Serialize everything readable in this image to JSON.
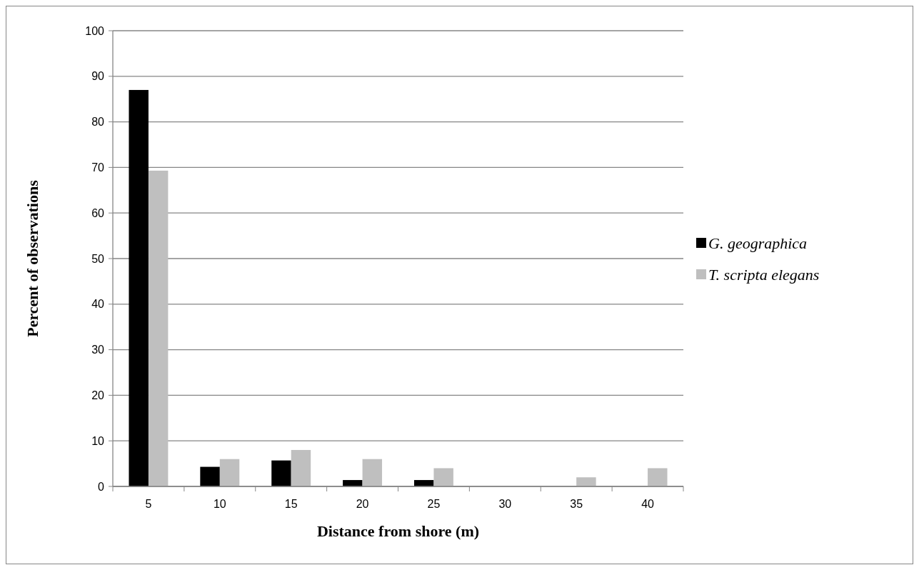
{
  "chart_data": {
    "type": "bar",
    "xlabel": "Distance from shore (m)",
    "ylabel": "Percent of observations",
    "categories": [
      "5",
      "10",
      "15",
      "20",
      "25",
      "30",
      "35",
      "40"
    ],
    "series": [
      {
        "name": "G. geographica",
        "color": "#000000",
        "values": [
          87,
          4.3,
          5.7,
          1.4,
          1.4,
          0,
          0,
          0
        ]
      },
      {
        "name": "T. scripta elegans",
        "color": "#bfbfbf",
        "values": [
          69.3,
          6,
          8,
          6,
          4,
          0,
          2,
          4
        ]
      }
    ],
    "ylim": [
      0,
      100
    ],
    "yticks": [
      0,
      10,
      20,
      30,
      40,
      50,
      60,
      70,
      80,
      90,
      100
    ],
    "grid": "y",
    "legend": "right"
  }
}
